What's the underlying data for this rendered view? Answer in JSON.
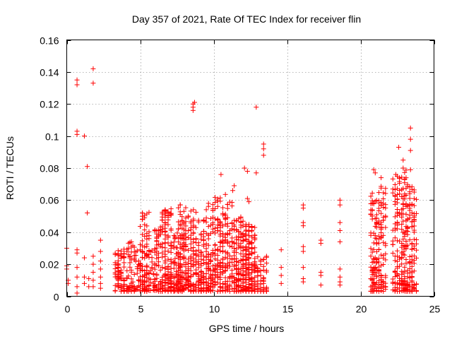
{
  "chart_data": {
    "type": "scatter",
    "title": "Day 357 of 2021, Rate Of TEC Index for receiver flin",
    "xlabel": "GPS time / hours",
    "ylabel": "ROTI / TECUs",
    "xlim": [
      0,
      25
    ],
    "ylim": [
      0,
      0.16
    ],
    "x_ticks": [
      0,
      5,
      10,
      15,
      20,
      25
    ],
    "x_tick_labels": [
      "0",
      "5",
      "10",
      "15",
      "20",
      "25"
    ],
    "y_ticks": [
      0,
      0.02,
      0.04,
      0.06,
      0.08,
      0.1,
      0.12,
      0.14,
      0.16
    ],
    "y_tick_labels": [
      "0",
      "0.02",
      "0.04",
      "0.06",
      "0.08",
      "0.1",
      "0.12",
      "0.14",
      "0.16"
    ],
    "grid": true,
    "marker": "plus",
    "series_color": "#ff0000",
    "series": [
      {
        "name": "ROTI",
        "points": [
          [
            0.0,
            0.03
          ],
          [
            0.0,
            0.019
          ],
          [
            0.0,
            0.017
          ],
          [
            0.1,
            0.01
          ],
          [
            0.1,
            0.008
          ],
          [
            0.7,
            0.135
          ],
          [
            0.7,
            0.132
          ],
          [
            0.7,
            0.103
          ],
          [
            0.7,
            0.101
          ],
          [
            0.7,
            0.029
          ],
          [
            0.7,
            0.027
          ],
          [
            0.7,
            0.018
          ],
          [
            0.7,
            0.012
          ],
          [
            0.7,
            0.006
          ],
          [
            0.7,
            0.002
          ],
          [
            1.2,
            0.1
          ],
          [
            1.2,
            0.024
          ],
          [
            1.2,
            0.012
          ],
          [
            1.2,
            0.008
          ],
          [
            1.4,
            0.081
          ],
          [
            1.4,
            0.052
          ],
          [
            1.5,
            0.011
          ],
          [
            1.5,
            0.006
          ],
          [
            1.8,
            0.142
          ],
          [
            1.8,
            0.133
          ],
          [
            1.8,
            0.025
          ],
          [
            1.8,
            0.02
          ],
          [
            1.8,
            0.015
          ],
          [
            1.8,
            0.01
          ],
          [
            1.8,
            0.006
          ],
          [
            2.3,
            0.035
          ],
          [
            2.3,
            0.028
          ],
          [
            2.3,
            0.022
          ],
          [
            2.3,
            0.017
          ],
          [
            2.3,
            0.012
          ],
          [
            2.3,
            0.008
          ],
          [
            2.3,
            0.005
          ],
          [
            8.6,
            0.12
          ],
          [
            8.6,
            0.118
          ],
          [
            8.7,
            0.121
          ],
          [
            8.6,
            0.116
          ],
          [
            12.9,
            0.118
          ],
          [
            13.4,
            0.095
          ],
          [
            13.4,
            0.092
          ],
          [
            13.4,
            0.088
          ],
          [
            10.5,
            0.076
          ],
          [
            11.3,
            0.066
          ],
          [
            11.4,
            0.069
          ],
          [
            12.1,
            0.08
          ],
          [
            12.3,
            0.078
          ],
          [
            12.9,
            0.077
          ],
          [
            12.3,
            0.061
          ],
          [
            12.4,
            0.059
          ],
          [
            14.6,
            0.029
          ],
          [
            14.6,
            0.018
          ],
          [
            14.6,
            0.013
          ],
          [
            14.6,
            0.008
          ],
          [
            16.1,
            0.057
          ],
          [
            16.1,
            0.055
          ],
          [
            16.1,
            0.046
          ],
          [
            16.1,
            0.044
          ],
          [
            16.1,
            0.031
          ],
          [
            16.1,
            0.028
          ],
          [
            16.1,
            0.018
          ],
          [
            16.1,
            0.011
          ],
          [
            16.1,
            0.009
          ],
          [
            17.3,
            0.035
          ],
          [
            17.3,
            0.033
          ],
          [
            17.3,
            0.015
          ],
          [
            17.3,
            0.013
          ],
          [
            17.3,
            0.007
          ],
          [
            18.6,
            0.06
          ],
          [
            18.6,
            0.057
          ],
          [
            18.6,
            0.046
          ],
          [
            18.6,
            0.041
          ],
          [
            18.6,
            0.034
          ],
          [
            18.6,
            0.017
          ],
          [
            18.6,
            0.012
          ],
          [
            18.6,
            0.009
          ],
          [
            18.6,
            0.007
          ],
          [
            22.6,
            0.093
          ],
          [
            23.4,
            0.105
          ],
          [
            23.4,
            0.098
          ],
          [
            23.4,
            0.091
          ],
          [
            22.9,
            0.085
          ],
          [
            22.9,
            0.08
          ],
          [
            21.4,
            0.074
          ],
          [
            23.4,
            0.079
          ],
          [
            20.9,
            0.079
          ],
          [
            21.0,
            0.077
          ],
          [
            22.4,
            0.076
          ]
        ]
      }
    ],
    "dense_clusters": [
      {
        "x_range": [
          3.3,
          4.1
        ],
        "y_range": [
          0.003,
          0.03
        ],
        "count": 90
      },
      {
        "x_range": [
          4.2,
          4.6
        ],
        "y_range": [
          0.003,
          0.035
        ],
        "count": 40
      },
      {
        "x_range": [
          4.6,
          5.0
        ],
        "y_range": [
          0.003,
          0.03
        ],
        "count": 20
      },
      {
        "x_range": [
          5.0,
          5.6
        ],
        "y_range": [
          0.003,
          0.055
        ],
        "count": 110
      },
      {
        "x_range": [
          5.6,
          6.0
        ],
        "y_range": [
          0.003,
          0.03
        ],
        "count": 20
      },
      {
        "x_range": [
          6.0,
          6.5
        ],
        "y_range": [
          0.003,
          0.045
        ],
        "count": 70
      },
      {
        "x_range": [
          6.5,
          7.3
        ],
        "y_range": [
          0.003,
          0.055
        ],
        "count": 150
      },
      {
        "x_range": [
          7.3,
          7.6
        ],
        "y_range": [
          0.003,
          0.04
        ],
        "count": 30
      },
      {
        "x_range": [
          7.6,
          8.1
        ],
        "y_range": [
          0.003,
          0.058
        ],
        "count": 130
      },
      {
        "x_range": [
          8.1,
          8.8
        ],
        "y_range": [
          0.003,
          0.055
        ],
        "count": 110
      },
      {
        "x_range": [
          8.8,
          9.5
        ],
        "y_range": [
          0.003,
          0.05
        ],
        "count": 100
      },
      {
        "x_range": [
          9.5,
          10.1
        ],
        "y_range": [
          0.003,
          0.058
        ],
        "count": 100
      },
      {
        "x_range": [
          10.1,
          10.8
        ],
        "y_range": [
          0.003,
          0.065
        ],
        "count": 110
      },
      {
        "x_range": [
          10.8,
          11.4
        ],
        "y_range": [
          0.003,
          0.06
        ],
        "count": 80
      },
      {
        "x_range": [
          11.4,
          12.0
        ],
        "y_range": [
          0.003,
          0.05
        ],
        "count": 120
      },
      {
        "x_range": [
          12.0,
          12.8
        ],
        "y_range": [
          0.003,
          0.045
        ],
        "count": 160
      },
      {
        "x_range": [
          12.8,
          13.6
        ],
        "y_range": [
          0.003,
          0.025
        ],
        "count": 60
      },
      {
        "x_range": [
          20.7,
          21.1
        ],
        "y_range": [
          0.003,
          0.065
        ],
        "count": 80
      },
      {
        "x_range": [
          21.1,
          21.7
        ],
        "y_range": [
          0.003,
          0.07
        ],
        "count": 110
      },
      {
        "x_range": [
          22.2,
          22.8
        ],
        "y_range": [
          0.003,
          0.075
        ],
        "count": 100
      },
      {
        "x_range": [
          22.8,
          23.2
        ],
        "y_range": [
          0.003,
          0.08
        ],
        "count": 90
      },
      {
        "x_range": [
          23.2,
          23.8
        ],
        "y_range": [
          0.003,
          0.07
        ],
        "count": 110
      }
    ]
  }
}
